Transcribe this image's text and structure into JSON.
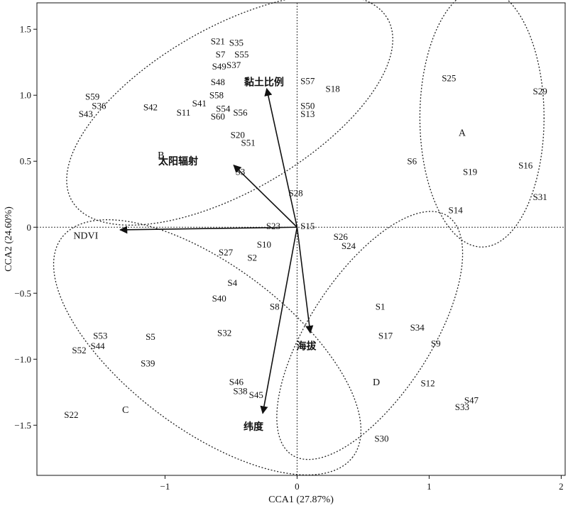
{
  "chart_data": {
    "type": "scatter",
    "subtype": "CCA ordination biplot",
    "xlabel": "CCA1 (27.87%)",
    "ylabel": "CCA2 (24.60%)",
    "xlim": [
      -1.97,
      2.03
    ],
    "ylim": [
      -1.88,
      1.7
    ],
    "xticks": [
      {
        "v": -1,
        "label": "−1"
      },
      {
        "v": 0,
        "label": "0"
      },
      {
        "v": 1,
        "label": "1"
      },
      {
        "v": 2,
        "label": "2"
      }
    ],
    "yticks": [
      {
        "v": -1.5,
        "label": "−1.5"
      },
      {
        "v": -1.0,
        "label": "−1.0"
      },
      {
        "v": -0.5,
        "label": "−0.5"
      },
      {
        "v": 0,
        "label": "0"
      },
      {
        "v": 0.5,
        "label": "0.5"
      },
      {
        "v": 1.0,
        "label": "1.0"
      },
      {
        "v": 1.5,
        "label": "1.5"
      }
    ],
    "zero_lines": "dotted",
    "sites": [
      {
        "name": "S1",
        "x": 0.63,
        "y": -0.6
      },
      {
        "name": "S2",
        "x": -0.34,
        "y": -0.23
      },
      {
        "name": "S3",
        "x": -0.43,
        "y": 0.42
      },
      {
        "name": "S4",
        "x": -0.49,
        "y": -0.42
      },
      {
        "name": "S5",
        "x": -1.11,
        "y": -0.83
      },
      {
        "name": "S6",
        "x": 0.87,
        "y": 0.5
      },
      {
        "name": "S7",
        "x": -0.58,
        "y": 1.31
      },
      {
        "name": "S8",
        "x": -0.17,
        "y": -0.6
      },
      {
        "name": "S9",
        "x": 1.05,
        "y": -0.88
      },
      {
        "name": "S10",
        "x": -0.25,
        "y": -0.13
      },
      {
        "name": "S11",
        "x": -0.86,
        "y": 0.87
      },
      {
        "name": "S12",
        "x": 0.99,
        "y": -1.18
      },
      {
        "name": "S13",
        "x": 0.08,
        "y": 0.86
      },
      {
        "name": "S14",
        "x": 1.2,
        "y": 0.13
      },
      {
        "name": "S15",
        "x": 0.08,
        "y": 0.01
      },
      {
        "name": "S16",
        "x": 1.73,
        "y": 0.47
      },
      {
        "name": "S17",
        "x": 0.67,
        "y": -0.82
      },
      {
        "name": "S18",
        "x": 0.27,
        "y": 1.05
      },
      {
        "name": "S19",
        "x": 1.31,
        "y": 0.42
      },
      {
        "name": "S20",
        "x": -0.45,
        "y": 0.7
      },
      {
        "name": "S21",
        "x": -0.6,
        "y": 1.41
      },
      {
        "name": "S22",
        "x": -1.71,
        "y": -1.42
      },
      {
        "name": "S23",
        "x": -0.18,
        "y": 0.01
      },
      {
        "name": "S24",
        "x": 0.39,
        "y": -0.14
      },
      {
        "name": "S25",
        "x": 1.15,
        "y": 1.13
      },
      {
        "name": "S26",
        "x": 0.33,
        "y": -0.07
      },
      {
        "name": "S27",
        "x": -0.54,
        "y": -0.19
      },
      {
        "name": "S28",
        "x": -0.01,
        "y": 0.26
      },
      {
        "name": "S29",
        "x": 1.84,
        "y": 1.03
      },
      {
        "name": "S30",
        "x": 0.64,
        "y": -1.6
      },
      {
        "name": "S31",
        "x": 1.84,
        "y": 0.23
      },
      {
        "name": "S32",
        "x": -0.55,
        "y": -0.8
      },
      {
        "name": "S33",
        "x": 1.25,
        "y": -1.36
      },
      {
        "name": "S34",
        "x": 0.91,
        "y": -0.76
      },
      {
        "name": "S35",
        "x": -0.46,
        "y": 1.4
      },
      {
        "name": "S36",
        "x": -1.5,
        "y": 0.92
      },
      {
        "name": "S37",
        "x": -0.48,
        "y": 1.23
      },
      {
        "name": "S38",
        "x": -0.43,
        "y": -1.24
      },
      {
        "name": "S39",
        "x": -1.13,
        "y": -1.03
      },
      {
        "name": "S40",
        "x": -0.59,
        "y": -0.54
      },
      {
        "name": "S41",
        "x": -0.74,
        "y": 0.94
      },
      {
        "name": "S42",
        "x": -1.11,
        "y": 0.91
      },
      {
        "name": "S43",
        "x": -1.6,
        "y": 0.86
      },
      {
        "name": "S44",
        "x": -1.51,
        "y": -0.9
      },
      {
        "name": "S45",
        "x": -0.31,
        "y": -1.27
      },
      {
        "name": "S46",
        "x": -0.46,
        "y": -1.17
      },
      {
        "name": "S47",
        "x": 1.32,
        "y": -1.31
      },
      {
        "name": "S48",
        "x": -0.6,
        "y": 1.1
      },
      {
        "name": "S49",
        "x": -0.59,
        "y": 1.22
      },
      {
        "name": "S50",
        "x": 0.08,
        "y": 0.92
      },
      {
        "name": "S51",
        "x": -0.37,
        "y": 0.64
      },
      {
        "name": "S52",
        "x": -1.65,
        "y": -0.93
      },
      {
        "name": "S53",
        "x": -1.49,
        "y": -0.82
      },
      {
        "name": "S54",
        "x": -0.56,
        "y": 0.9
      },
      {
        "name": "S55",
        "x": -0.42,
        "y": 1.31
      },
      {
        "name": "S56",
        "x": -0.43,
        "y": 0.87
      },
      {
        "name": "S57",
        "x": 0.08,
        "y": 1.11
      },
      {
        "name": "S58",
        "x": -0.61,
        "y": 1.0
      },
      {
        "name": "S59",
        "x": -1.55,
        "y": 0.99
      },
      {
        "name": "S60",
        "x": -0.6,
        "y": 0.84
      }
    ],
    "groups": [
      {
        "label": "A",
        "x": 1.25,
        "y": 0.72
      },
      {
        "label": "B",
        "x": -1.03,
        "y": 0.55
      },
      {
        "label": "C",
        "x": -1.3,
        "y": -1.38
      },
      {
        "label": "D",
        "x": 0.6,
        "y": -1.17
      }
    ],
    "ellipses": [
      {
        "cx": 1.4,
        "cy": 0.83,
        "rx": 0.47,
        "ry": 0.98,
        "angle": 0
      },
      {
        "cx": -0.51,
        "cy": 0.89,
        "rx": 1.38,
        "ry": 0.62,
        "angle": -30
      },
      {
        "cx": -0.68,
        "cy": -0.91,
        "rx": 1.38,
        "ry": 0.62,
        "angle": 37
      },
      {
        "cx": 0.55,
        "cy": -0.82,
        "rx": 1.08,
        "ry": 0.46,
        "angle": -57
      }
    ],
    "vectors": [
      {
        "name": "黏土比例",
        "x": -0.23,
        "y": 1.05,
        "lx": -0.25,
        "ly": 1.1
      },
      {
        "name": "太阳辐射",
        "x": -0.48,
        "y": 0.47,
        "lx": -0.9,
        "ly": 0.5
      },
      {
        "name": "NDVI",
        "x": -1.34,
        "y": -0.02,
        "lx": -1.6,
        "ly": -0.06
      },
      {
        "name": "海拔",
        "x": 0.1,
        "y": -0.8,
        "lx": 0.07,
        "ly": -0.9
      },
      {
        "name": "纬度",
        "x": -0.26,
        "y": -1.41,
        "lx": -0.33,
        "ly": -1.51
      }
    ]
  }
}
